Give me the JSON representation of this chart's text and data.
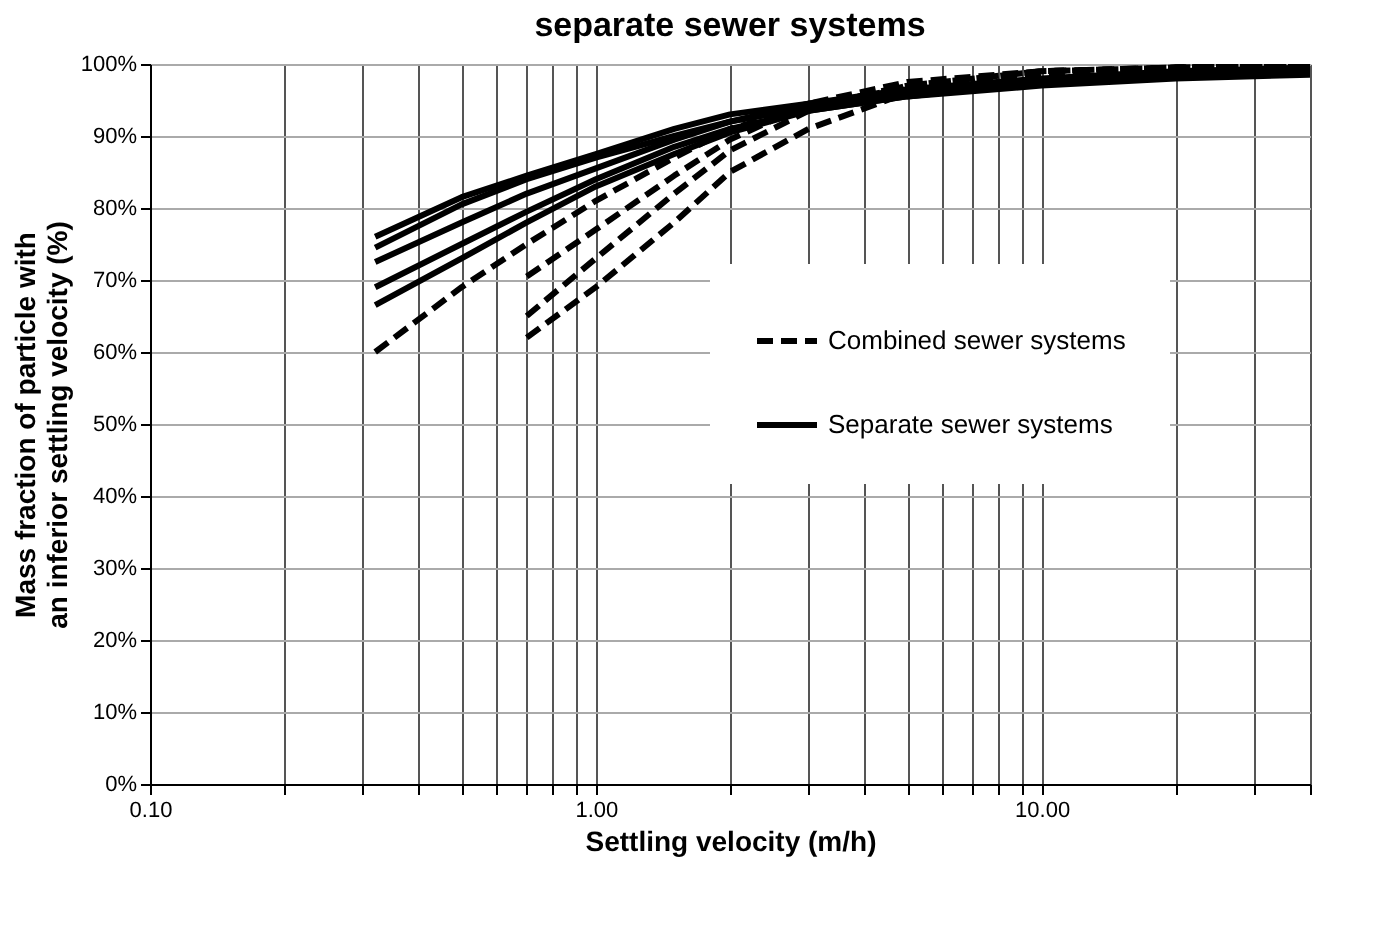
{
  "chart_data": {
    "type": "line",
    "title": "separate sewer systems",
    "xlabel": "Settling velocity (m/h)",
    "ylabel": "Mass fraction of particle with an inferior settling velocity (%)",
    "log": "x",
    "xlim": [
      0.1,
      40
    ],
    "ylim": [
      0,
      100
    ],
    "xticks": [
      {
        "value": 0.1,
        "label": "0.10"
      },
      {
        "value": 0.2,
        "label": null
      },
      {
        "value": 0.3,
        "label": null
      },
      {
        "value": 0.4,
        "label": null
      },
      {
        "value": 0.5,
        "label": null
      },
      {
        "value": 0.6,
        "label": null
      },
      {
        "value": 0.7,
        "label": null
      },
      {
        "value": 0.8,
        "label": null
      },
      {
        "value": 0.9,
        "label": null
      },
      {
        "value": 1,
        "label": "1.00"
      },
      {
        "value": 2,
        "label": null
      },
      {
        "value": 3,
        "label": null
      },
      {
        "value": 4,
        "label": null
      },
      {
        "value": 5,
        "label": null
      },
      {
        "value": 6,
        "label": null
      },
      {
        "value": 7,
        "label": null
      },
      {
        "value": 8,
        "label": null
      },
      {
        "value": 9,
        "label": null
      },
      {
        "value": 10,
        "label": "10.00"
      },
      {
        "value": 20,
        "label": null
      },
      {
        "value": 30,
        "label": null
      },
      {
        "value": 40,
        "label": null
      }
    ],
    "yticks": [
      {
        "value": 0,
        "label": "0%"
      },
      {
        "value": 10,
        "label": "10%"
      },
      {
        "value": 20,
        "label": "20%"
      },
      {
        "value": 30,
        "label": "30%"
      },
      {
        "value": 40,
        "label": "40%"
      },
      {
        "value": 50,
        "label": "50%"
      },
      {
        "value": 60,
        "label": "60%"
      },
      {
        "value": 70,
        "label": "70%"
      },
      {
        "value": 80,
        "label": "80%"
      },
      {
        "value": 90,
        "label": "90%"
      },
      {
        "value": 100,
        "label": "100%"
      }
    ],
    "grid": true,
    "legend": "right",
    "marker": "none",
    "series": [
      {
        "name": "Combined sewer systems",
        "color": "#000000",
        "line_style": "dashed",
        "x": [
          0.32,
          0.5,
          0.7,
          1,
          1.5,
          2,
          3,
          5,
          10,
          20,
          40
        ],
        "values": [
          60,
          69,
          75,
          81,
          87,
          91,
          94,
          97,
          99,
          99.5,
          100
        ]
      },
      {
        "color": "#000000",
        "line_style": "dashed",
        "x": [
          0.7,
          1,
          1.5,
          2,
          3,
          5,
          10,
          20,
          40
        ],
        "values": [
          70.5,
          77,
          84.5,
          89.5,
          94.5,
          97.5,
          99,
          99.5,
          100
        ]
      },
      {
        "color": "#000000",
        "line_style": "dashed",
        "x": [
          0.7,
          1,
          1.5,
          2,
          3,
          5,
          10,
          20,
          40
        ],
        "values": [
          65,
          73,
          82,
          88,
          93.5,
          97,
          99,
          99.5,
          100
        ]
      },
      {
        "color": "#000000",
        "line_style": "dashed",
        "x": [
          0.7,
          1,
          1.5,
          2,
          3,
          5,
          10,
          20,
          40
        ],
        "values": [
          62,
          69,
          78,
          85,
          91,
          96,
          98.5,
          99.5,
          100
        ]
      },
      {
        "name": "Separate sewer systems",
        "color": "#000000",
        "line_style": "solid",
        "x": [
          0.32,
          0.5,
          0.7,
          1,
          1.5,
          2,
          3,
          5,
          10,
          20,
          40
        ],
        "values": [
          76,
          81.5,
          84.5,
          87.5,
          91,
          93,
          94.5,
          96,
          97.5,
          98.5,
          99
        ]
      },
      {
        "color": "#000000",
        "line_style": "solid",
        "x": [
          0.32,
          0.5,
          0.7,
          1,
          1.5,
          2,
          3,
          5,
          10,
          20,
          40
        ],
        "values": [
          74.5,
          80.5,
          84,
          87,
          90,
          92,
          94,
          96,
          97.5,
          98.5,
          99.5
        ]
      },
      {
        "color": "#000000",
        "line_style": "solid",
        "x": [
          0.32,
          0.5,
          0.7,
          1,
          1.5,
          2,
          3,
          5,
          10,
          20,
          40
        ],
        "values": [
          72.5,
          78,
          82,
          85.5,
          89.5,
          92,
          94.5,
          96.5,
          98,
          99,
          99.5
        ]
      },
      {
        "color": "#000000",
        "line_style": "solid",
        "x": [
          0.32,
          0.5,
          0.7,
          1,
          1.5,
          2,
          3,
          5,
          10,
          20,
          40
        ],
        "values": [
          69,
          75,
          79.5,
          84,
          88.5,
          91,
          93.5,
          95.5,
          97,
          98,
          98.5
        ]
      },
      {
        "color": "#000000",
        "line_style": "solid",
        "x": [
          0.32,
          0.5,
          0.7,
          1,
          1.5,
          2,
          3,
          5,
          10,
          20,
          40
        ],
        "values": [
          66.5,
          73,
          78,
          83,
          87.5,
          90.5,
          93.5,
          95.5,
          97.5,
          98.5,
          99.5
        ]
      }
    ]
  }
}
